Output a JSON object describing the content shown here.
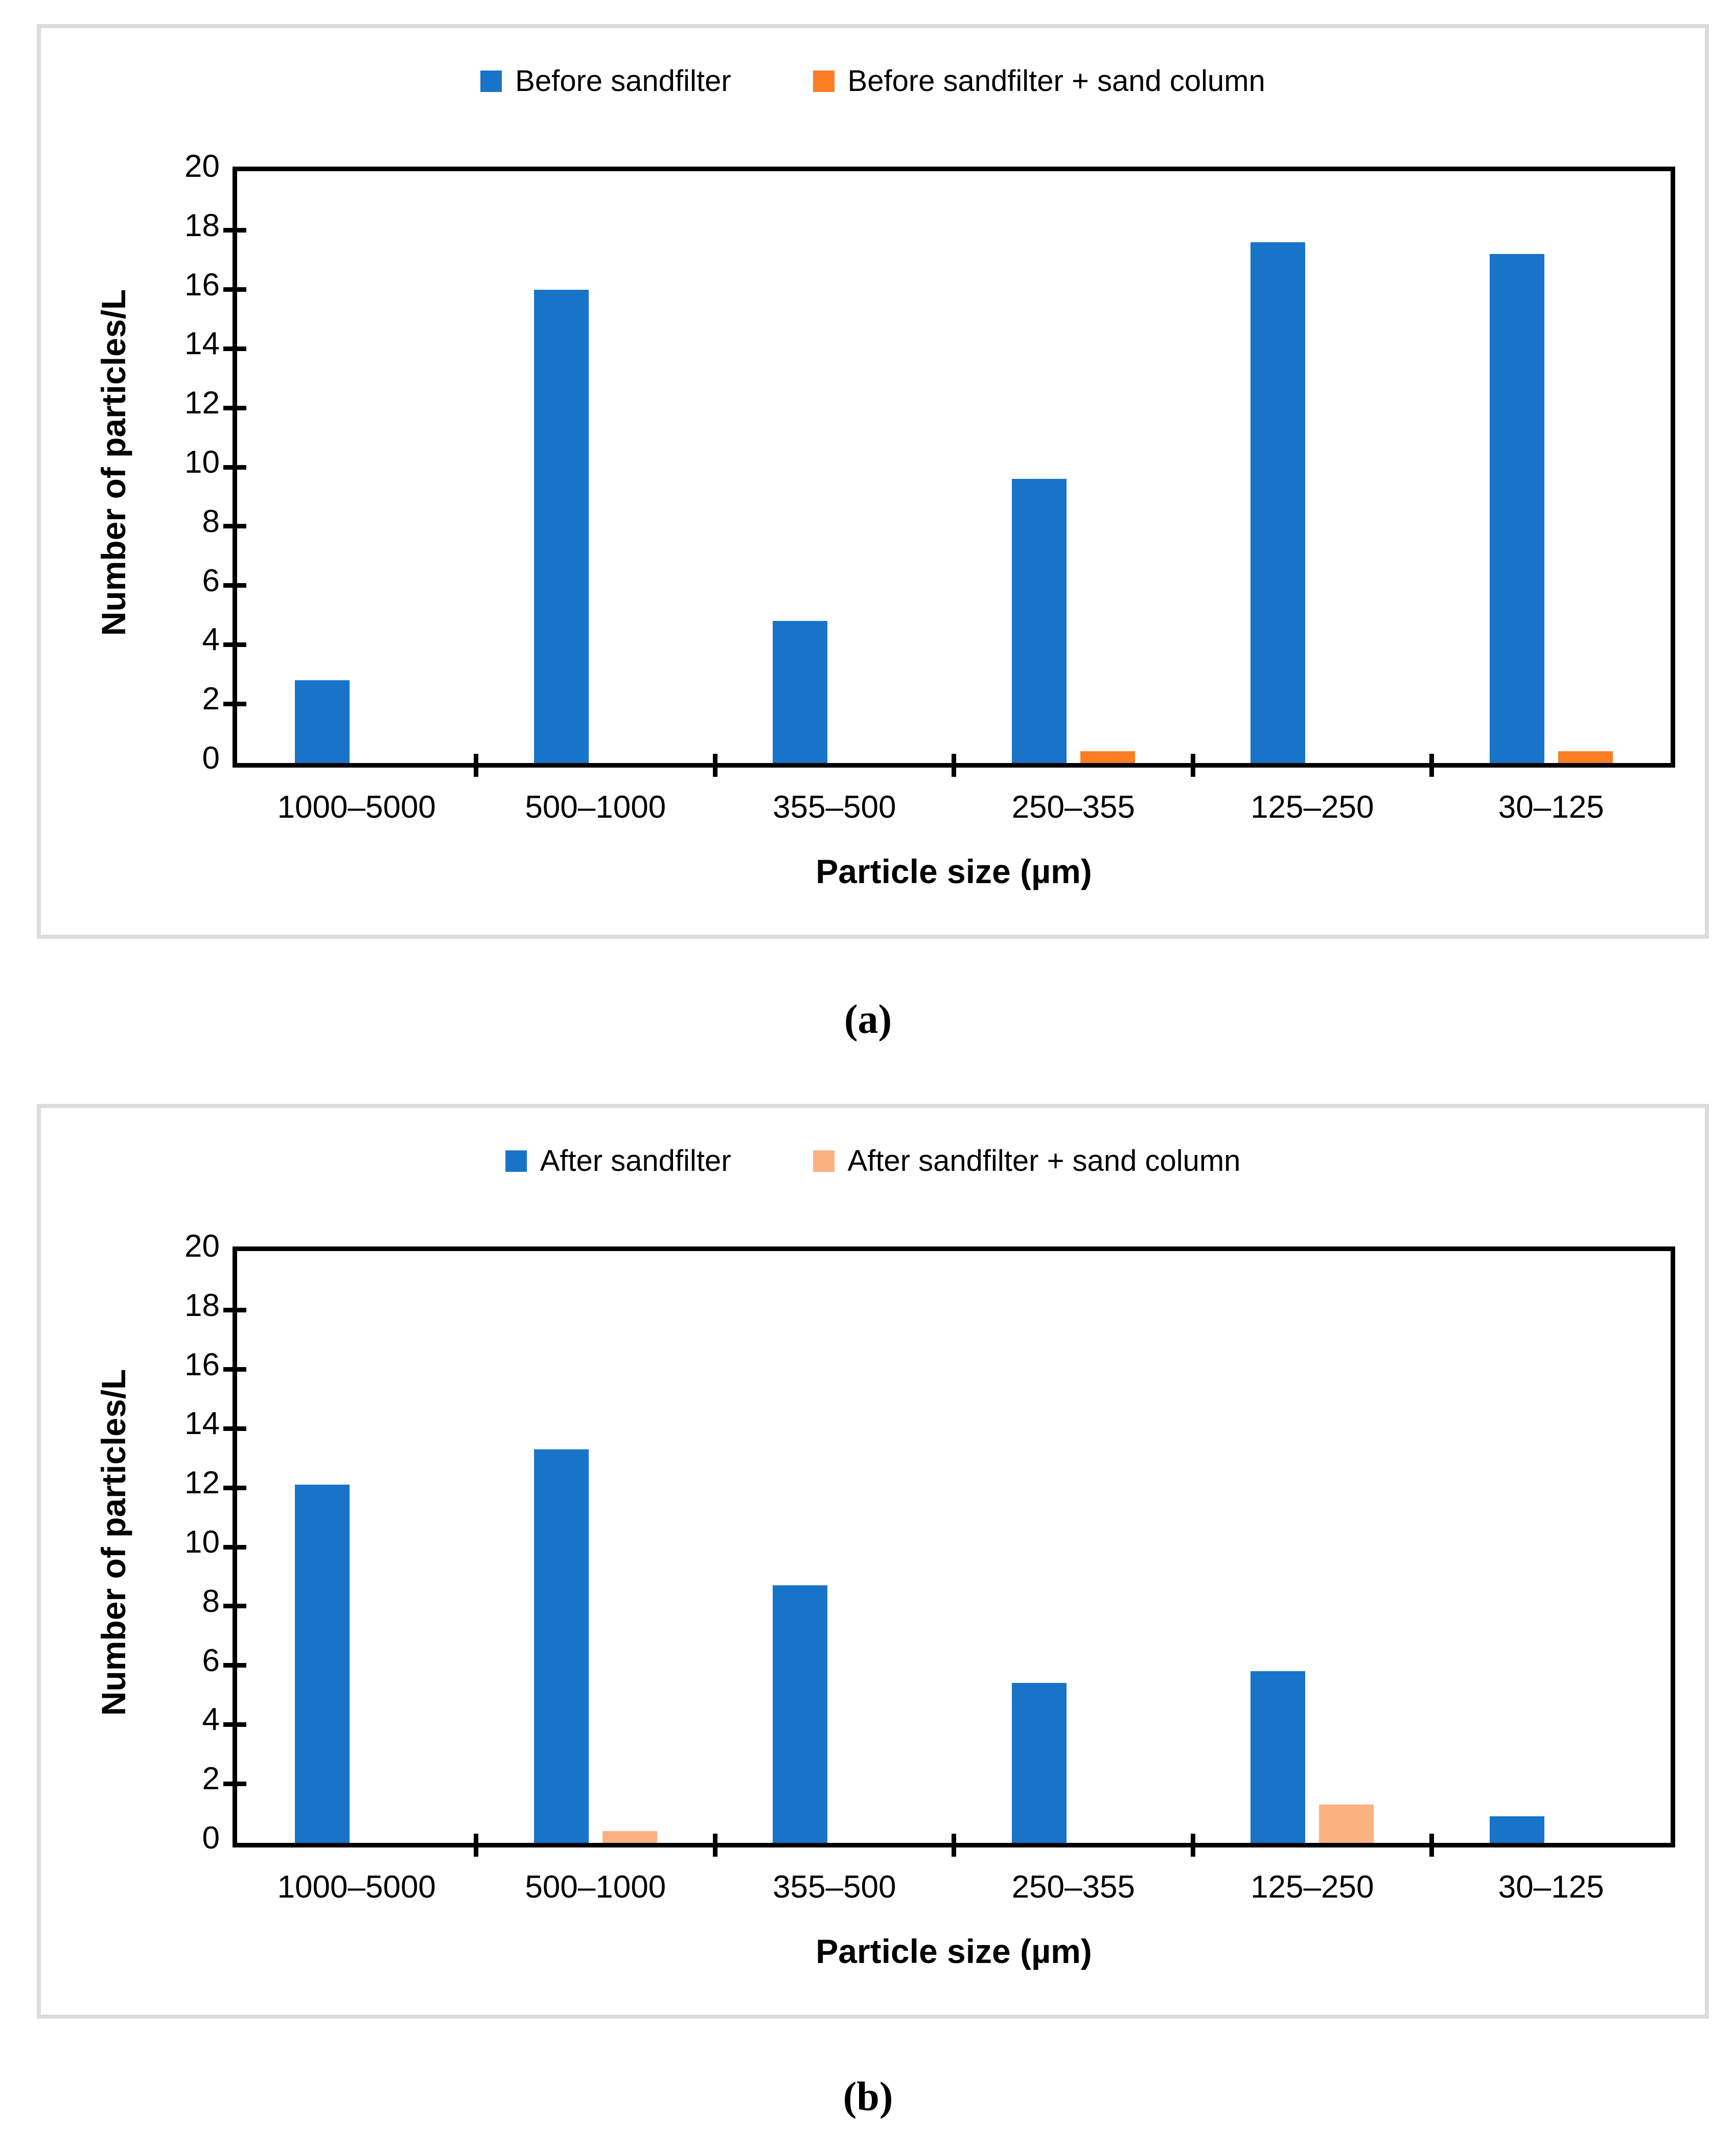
{
  "captions": [
    "(a)",
    "(b)"
  ],
  "chart_data": [
    {
      "type": "bar",
      "panel": "a",
      "categories": [
        "1000–5000",
        "500–1000",
        "355–500",
        "250–355",
        "125–250",
        "30–125"
      ],
      "series": [
        {
          "name": "Before sandfilter",
          "color": "#1874C8",
          "values": [
            2.8,
            16,
            4.8,
            9.6,
            17.6,
            17.2
          ]
        },
        {
          "name": "Before sandfilter + sand column",
          "color": "#FB7D24",
          "values": [
            0,
            0,
            0,
            0.4,
            0,
            0.4
          ]
        }
      ],
      "xlabel": "Particle size (µm)",
      "ylabel": "Number of particles/L",
      "ylim": [
        0,
        20
      ],
      "ytick_step": 2,
      "legend_position": "top-center",
      "grid": false
    },
    {
      "type": "bar",
      "panel": "b",
      "categories": [
        "1000–5000",
        "500–1000",
        "355–500",
        "250–355",
        "125–250",
        "30–125"
      ],
      "series": [
        {
          "name": "After sandfilter",
          "color": "#1874C8",
          "values": [
            12.1,
            13.3,
            8.7,
            5.4,
            5.8,
            0.9
          ]
        },
        {
          "name": "After sandfilter + sand column",
          "color": "#FCB181",
          "values": [
            0,
            0.4,
            0,
            0,
            1.3,
            0
          ]
        }
      ],
      "xlabel": "Particle size (µm)",
      "ylabel": "Number of particles/L",
      "ylim": [
        0,
        20
      ],
      "ytick_step": 2,
      "legend_position": "top-center",
      "grid": false
    }
  ]
}
